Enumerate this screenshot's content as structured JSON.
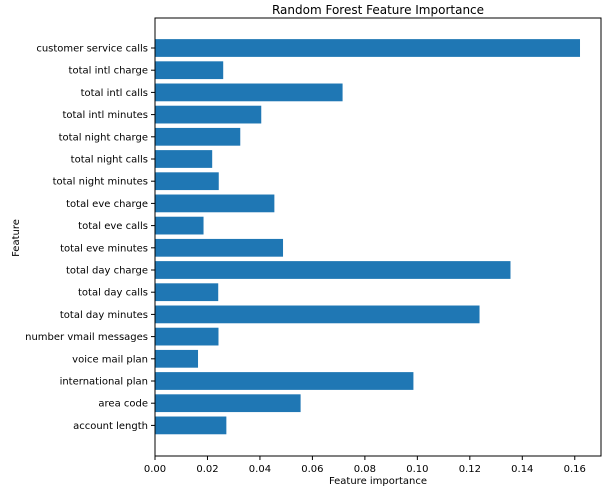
{
  "chart_data": {
    "type": "bar",
    "orientation": "horizontal",
    "title": "Random Forest Feature Importance",
    "xlabel": "Feature importance",
    "ylabel": "Feature",
    "xlim": [
      0,
      0.17
    ],
    "x_ticks": [
      0.0,
      0.02,
      0.04,
      0.06,
      0.08,
      0.1,
      0.12,
      0.14,
      0.16
    ],
    "x_tick_labels": [
      "0.00",
      "0.02",
      "0.04",
      "0.06",
      "0.08",
      "0.10",
      "0.12",
      "0.14",
      "0.16"
    ],
    "grid": false,
    "bar_color": "#1f77b4",
    "categories": [
      "customer service calls",
      "total intl charge",
      "total intl calls",
      "total intl minutes",
      "total night charge",
      "total night calls",
      "total night minutes",
      "total eve charge",
      "total eve calls",
      "total eve minutes",
      "total day charge",
      "total day calls",
      "total day minutes",
      "number vmail messages",
      "voice mail plan",
      "international plan",
      "area code",
      "account length"
    ],
    "values": [
      0.162,
      0.026,
      0.0715,
      0.0405,
      0.0325,
      0.0218,
      0.0243,
      0.0455,
      0.0185,
      0.0488,
      0.1355,
      0.0241,
      0.1237,
      0.0242,
      0.0164,
      0.0985,
      0.0555,
      0.0272
    ]
  }
}
